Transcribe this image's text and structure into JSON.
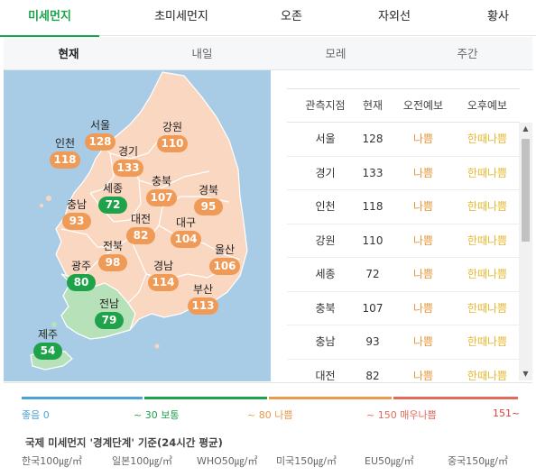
{
  "top_tabs": [
    {
      "label": "미세먼지",
      "active": true
    },
    {
      "label": "초미세먼지",
      "active": false
    },
    {
      "label": "오존",
      "active": false
    },
    {
      "label": "자외선",
      "active": false
    },
    {
      "label": "황사",
      "active": false
    }
  ],
  "sub_tabs": [
    {
      "label": "현재",
      "active": true
    },
    {
      "label": "내일",
      "active": false
    },
    {
      "label": "모레",
      "active": false
    },
    {
      "label": "주간",
      "active": false
    }
  ],
  "map_regions": [
    {
      "name": "서울",
      "value": "128",
      "status": "bad"
    },
    {
      "name": "강원",
      "value": "110",
      "status": "bad"
    },
    {
      "name": "인천",
      "value": "118",
      "status": "bad"
    },
    {
      "name": "경기",
      "value": "133",
      "status": "bad"
    },
    {
      "name": "충북",
      "value": "107",
      "status": "bad"
    },
    {
      "name": "세종",
      "value": "72",
      "status": "normal"
    },
    {
      "name": "경북",
      "value": "95",
      "status": "bad"
    },
    {
      "name": "충남",
      "value": "93",
      "status": "bad"
    },
    {
      "name": "대전",
      "value": "82",
      "status": "bad"
    },
    {
      "name": "대구",
      "value": "104",
      "status": "bad"
    },
    {
      "name": "전북",
      "value": "98",
      "status": "bad"
    },
    {
      "name": "울산",
      "value": "106",
      "status": "bad"
    },
    {
      "name": "광주",
      "value": "80",
      "status": "normal"
    },
    {
      "name": "경남",
      "value": "114",
      "status": "bad"
    },
    {
      "name": "부산",
      "value": "113",
      "status": "bad"
    },
    {
      "name": "전남",
      "value": "79",
      "status": "normal"
    },
    {
      "name": "제주",
      "value": "54",
      "status": "normal"
    }
  ],
  "table": {
    "headers": [
      "관측지점",
      "현재",
      "오전예보",
      "오후예보"
    ],
    "rows": [
      [
        "서울",
        "128",
        "나쁨",
        "한때나쁨"
      ],
      [
        "경기",
        "133",
        "나쁨",
        "한때나쁨"
      ],
      [
        "인천",
        "118",
        "나쁨",
        "한때나쁨"
      ],
      [
        "강원",
        "110",
        "나쁨",
        "한때나쁨"
      ],
      [
        "세종",
        "72",
        "나쁨",
        "한때나쁨"
      ],
      [
        "충북",
        "107",
        "나쁨",
        "한때나쁨"
      ],
      [
        "충남",
        "93",
        "나쁨",
        "한때나쁨"
      ],
      [
        "대전",
        "82",
        "나쁨",
        "한때나쁨"
      ]
    ]
  },
  "scale": {
    "levels": [
      {
        "label": "좋음 0",
        "color": "#4da3d6"
      },
      {
        "label": "~ 30 보통",
        "color": "#1ea24a"
      },
      {
        "label": "~ 80 나쁨",
        "color": "#e99a4c"
      },
      {
        "label": "~ 150 매우나쁨",
        "color": "#e26a5c"
      },
      {
        "label": "151~",
        "color": "#d9443a"
      }
    ]
  },
  "standards": {
    "title": "국제 미세먼지 '경계단계' 기준(24시간 평균)",
    "items": [
      "한국100㎍/㎥",
      "일본100㎍/㎥",
      "WHO50㎍/㎥",
      "미국150㎍/㎥",
      "EU50㎍/㎥",
      "중국150㎍/㎥"
    ]
  },
  "colors": {
    "accent": "#1aa34a",
    "bad": "#ef9a56",
    "normal": "#1ea24a",
    "forecast_am": "#e4983c",
    "forecast_pm": "#e6b830",
    "land": "#fad7c1",
    "land_good": "#b7e1b9",
    "sea": "#a8cce6"
  },
  "icons": [
    "scroll-up-arrow-icon",
    "scroll-down-arrow-icon"
  ]
}
